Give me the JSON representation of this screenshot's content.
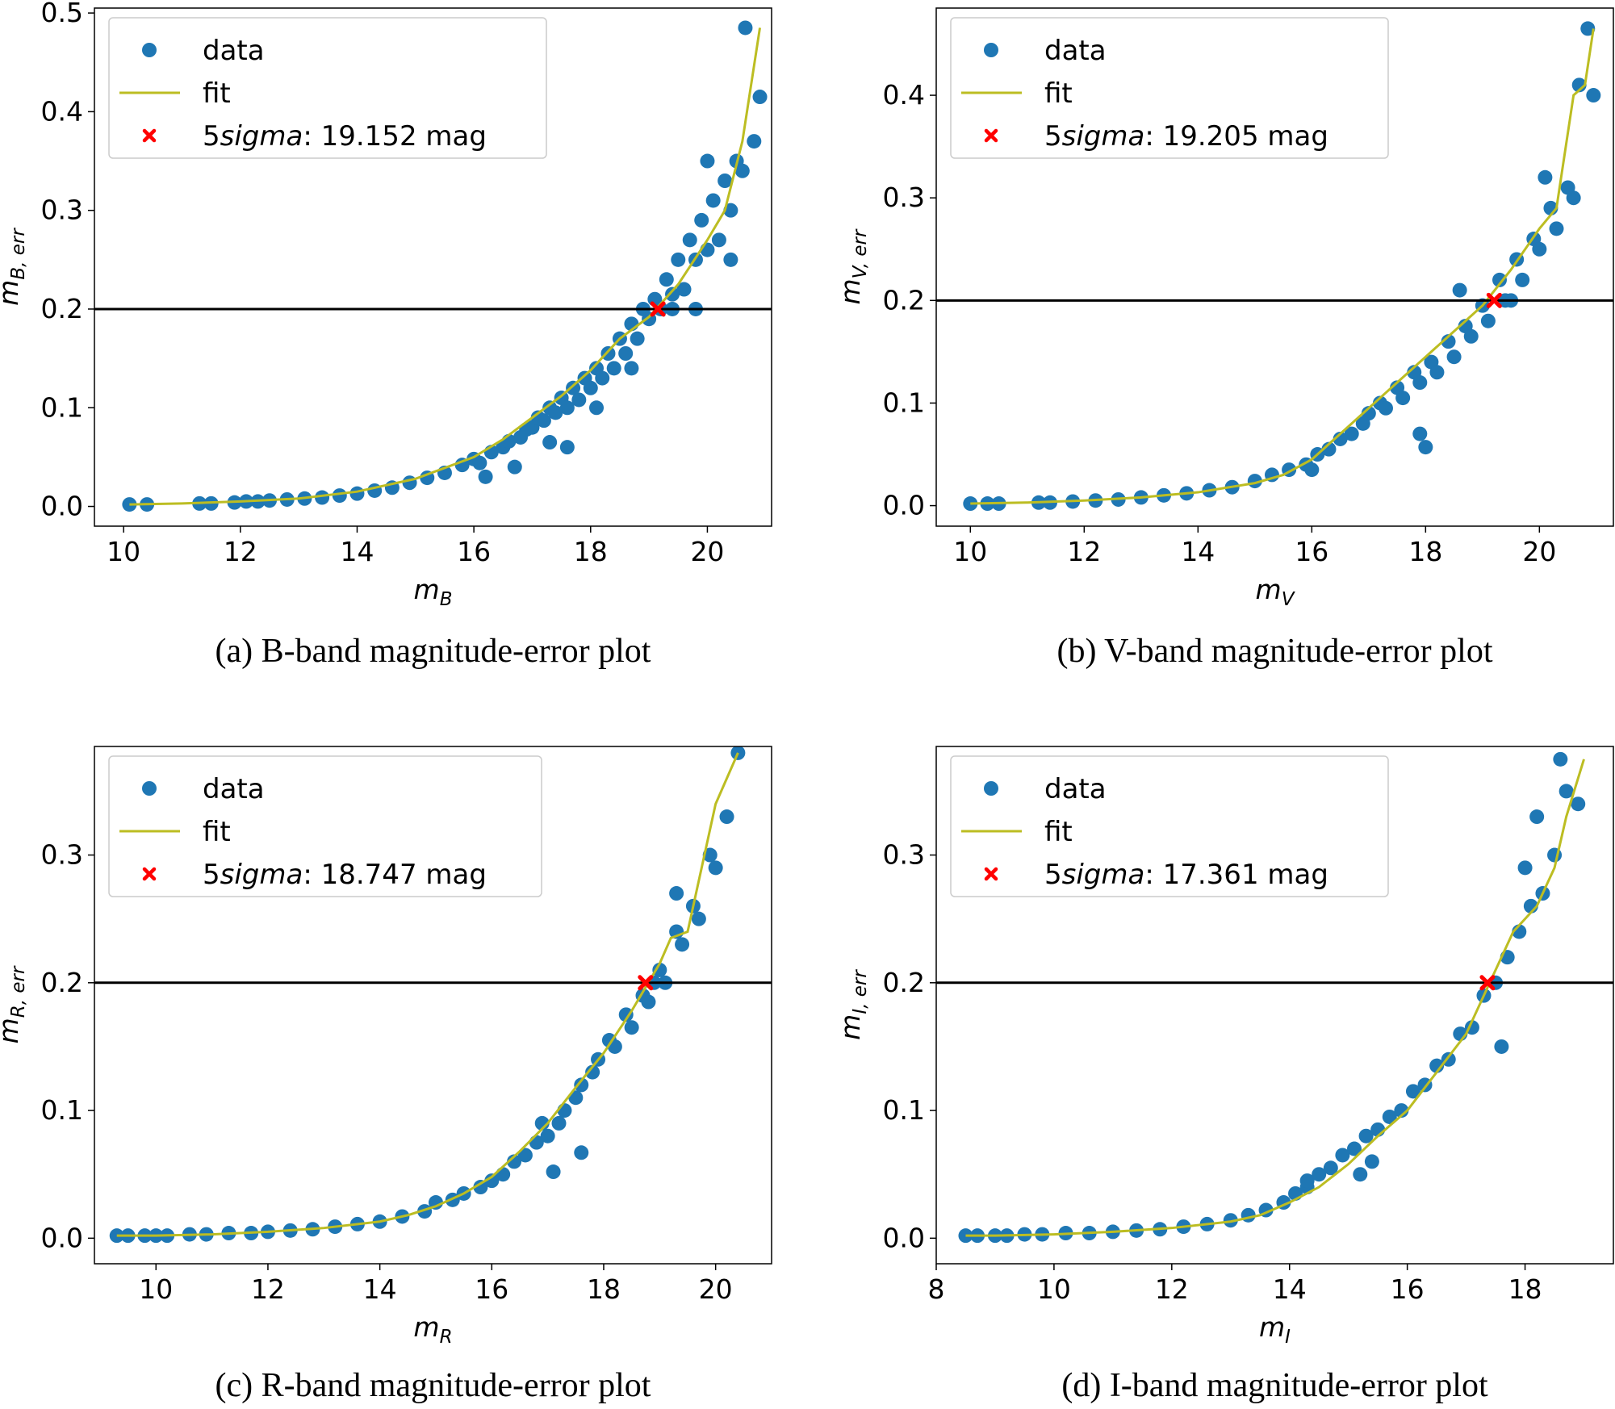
{
  "colors": {
    "data": "#1f77b4",
    "fit": "#bcbd22",
    "marker": "#ff0000",
    "hline": "#000000"
  },
  "legend": {
    "data_label": "data",
    "fit_label": "fit"
  },
  "chart_data": [
    {
      "type": "scatter",
      "band": "B",
      "caption": "(a) B-band magnitude-error plot",
      "xlabel_main": "m",
      "xlabel_sub": "B",
      "ylabel_main": "m",
      "ylabel_sub": "B, err",
      "xlim": [
        9.5,
        21.1
      ],
      "ylim": [
        -0.02,
        0.505
      ],
      "xticks": [
        10,
        12,
        14,
        16,
        18,
        20
      ],
      "yticks": [
        0.0,
        0.1,
        0.2,
        0.3,
        0.4,
        0.5
      ],
      "yticklabels": [
        "0.0",
        "0.1",
        "0.2",
        "0.3",
        "0.4",
        "0.5"
      ],
      "hline": 0.2,
      "sigma_label_prefix": "5",
      "sigma_label_italic": "sigma",
      "sigma_label_value": ":  19.152 mag",
      "sigma_x": 19.152,
      "sigma_y": 0.2,
      "fit_x": [
        10.1,
        11,
        12,
        13,
        14,
        15,
        16,
        16.5,
        17,
        17.5,
        18,
        18.5,
        19,
        19.5,
        20,
        20.3,
        20.6,
        20.9
      ],
      "fit_y": [
        0.002,
        0.003,
        0.005,
        0.008,
        0.015,
        0.028,
        0.05,
        0.068,
        0.09,
        0.112,
        0.138,
        0.17,
        0.192,
        0.225,
        0.27,
        0.3,
        0.37,
        0.485
      ],
      "data_x": [
        10.1,
        10.4,
        11.3,
        11.5,
        11.9,
        12.1,
        12.3,
        12.5,
        12.8,
        13.1,
        13.4,
        13.7,
        14,
        14.3,
        14.6,
        14.9,
        15.2,
        15.5,
        15.8,
        16,
        16.1,
        16.3,
        16.5,
        16.6,
        16.8,
        16.9,
        17,
        17.1,
        17.2,
        17.3,
        17.4,
        17.5,
        17.6,
        17.7,
        17.8,
        17.9,
        18,
        18.1,
        18.2,
        18.3,
        18.4,
        18.5,
        18.6,
        18.7,
        18.8,
        18.9,
        19,
        19.1,
        19.2,
        19.3,
        19.4,
        19.5,
        19.6,
        19.7,
        19.8,
        19.9,
        20,
        20.1,
        20.2,
        20.3,
        20.4,
        20.5,
        20.6,
        20.65,
        20.8,
        20.9,
        17.3,
        17.6,
        18.7,
        19.4,
        16.7,
        18.1,
        19.8,
        20.4,
        20.0,
        16.2
      ],
      "data_y": [
        0.002,
        0.002,
        0.003,
        0.003,
        0.004,
        0.005,
        0.005,
        0.006,
        0.007,
        0.008,
        0.009,
        0.011,
        0.013,
        0.016,
        0.019,
        0.024,
        0.029,
        0.034,
        0.042,
        0.048,
        0.044,
        0.055,
        0.06,
        0.066,
        0.07,
        0.078,
        0.08,
        0.09,
        0.087,
        0.1,
        0.095,
        0.11,
        0.1,
        0.12,
        0.108,
        0.13,
        0.12,
        0.14,
        0.13,
        0.155,
        0.14,
        0.17,
        0.155,
        0.185,
        0.17,
        0.2,
        0.19,
        0.21,
        0.2,
        0.23,
        0.215,
        0.25,
        0.22,
        0.27,
        0.25,
        0.29,
        0.26,
        0.31,
        0.27,
        0.33,
        0.3,
        0.35,
        0.34,
        0.485,
        0.37,
        0.415,
        0.065,
        0.06,
        0.14,
        0.2,
        0.04,
        0.1,
        0.2,
        0.25,
        0.35,
        0.03
      ]
    },
    {
      "type": "scatter",
      "band": "V",
      "caption": "(b) V-band magnitude-error plot",
      "xlabel_main": "m",
      "xlabel_sub": "V",
      "ylabel_main": "m",
      "ylabel_sub": "V, err",
      "xlim": [
        9.4,
        21.3
      ],
      "ylim": [
        -0.02,
        0.485
      ],
      "xticks": [
        10,
        12,
        14,
        16,
        18,
        20
      ],
      "yticks": [
        0.0,
        0.1,
        0.2,
        0.3,
        0.4
      ],
      "yticklabels": [
        "0.0",
        "0.1",
        "0.2",
        "0.3",
        "0.4"
      ],
      "hline": 0.2,
      "sigma_label_prefix": "5",
      "sigma_label_italic": "sigma",
      "sigma_label_value": ":  19.205 mag",
      "sigma_x": 19.205,
      "sigma_y": 0.2,
      "fit_x": [
        10.0,
        11,
        12,
        13,
        14,
        15,
        15.5,
        16,
        16.5,
        17,
        17.5,
        18,
        18.5,
        19,
        19.5,
        20,
        20.3,
        20.6,
        20.8,
        20.95
      ],
      "fit_y": [
        0.002,
        0.003,
        0.005,
        0.008,
        0.013,
        0.022,
        0.03,
        0.045,
        0.07,
        0.095,
        0.12,
        0.145,
        0.17,
        0.195,
        0.23,
        0.27,
        0.29,
        0.4,
        0.41,
        0.465
      ],
      "data_x": [
        10.0,
        10.3,
        10.5,
        11.2,
        11.4,
        11.8,
        12.2,
        12.6,
        13.0,
        13.4,
        13.8,
        14.2,
        14.6,
        15.0,
        15.3,
        15.6,
        15.9,
        16.1,
        16.3,
        16.5,
        16.7,
        16.9,
        17.0,
        17.2,
        17.3,
        17.5,
        17.6,
        17.8,
        17.9,
        18.1,
        18.2,
        18.4,
        18.5,
        18.7,
        18.8,
        19.0,
        19.1,
        19.3,
        19.4,
        19.6,
        19.7,
        19.9,
        20.0,
        20.2,
        20.3,
        20.5,
        20.6,
        20.7,
        20.85,
        20.95,
        18.0,
        17.9,
        18.6,
        19.5,
        20.1,
        16.0
      ],
      "data_y": [
        0.002,
        0.002,
        0.002,
        0.003,
        0.003,
        0.004,
        0.005,
        0.006,
        0.008,
        0.01,
        0.012,
        0.015,
        0.018,
        0.024,
        0.03,
        0.035,
        0.04,
        0.05,
        0.055,
        0.065,
        0.07,
        0.08,
        0.09,
        0.1,
        0.095,
        0.115,
        0.105,
        0.13,
        0.12,
        0.14,
        0.13,
        0.16,
        0.145,
        0.175,
        0.165,
        0.195,
        0.18,
        0.22,
        0.2,
        0.24,
        0.22,
        0.26,
        0.25,
        0.29,
        0.27,
        0.31,
        0.3,
        0.41,
        0.465,
        0.4,
        0.057,
        0.07,
        0.21,
        0.2,
        0.32,
        0.035
      ]
    },
    {
      "type": "scatter",
      "band": "R",
      "caption": "(c) R-band magnitude-error plot",
      "xlabel_main": "m",
      "xlabel_sub": "R",
      "ylabel_main": "m",
      "ylabel_sub": "R, err",
      "xlim": [
        8.9,
        21.0
      ],
      "ylim": [
        -0.02,
        0.385
      ],
      "xticks": [
        10,
        12,
        14,
        16,
        18,
        20
      ],
      "yticks": [
        0.0,
        0.1,
        0.2,
        0.3
      ],
      "yticklabels": [
        "0.0",
        "0.1",
        "0.2",
        "0.3"
      ],
      "hline": 0.2,
      "sigma_label_prefix": "5",
      "sigma_label_italic": "sigma",
      "sigma_label_value": ":  18.747 mag",
      "sigma_x": 18.747,
      "sigma_y": 0.2,
      "fit_x": [
        9.3,
        10,
        11,
        12,
        13,
        14,
        14.5,
        15,
        15.5,
        16,
        16.5,
        17,
        17.5,
        18,
        18.5,
        19,
        19.2,
        19.5,
        20,
        20.4
      ],
      "fit_y": [
        0.002,
        0.002,
        0.003,
        0.005,
        0.008,
        0.013,
        0.018,
        0.025,
        0.035,
        0.048,
        0.068,
        0.09,
        0.118,
        0.145,
        0.178,
        0.215,
        0.235,
        0.24,
        0.34,
        0.38
      ],
      "data_x": [
        9.3,
        9.5,
        9.8,
        10.0,
        10.2,
        10.6,
        10.9,
        11.3,
        11.7,
        12.0,
        12.4,
        12.8,
        13.2,
        13.6,
        14.0,
        14.4,
        14.8,
        15.0,
        15.3,
        15.5,
        15.8,
        16.0,
        16.2,
        16.4,
        16.6,
        16.8,
        17.0,
        17.2,
        17.3,
        17.5,
        17.6,
        17.8,
        17.9,
        18.1,
        18.2,
        18.4,
        18.5,
        18.7,
        18.8,
        19.0,
        19.1,
        19.3,
        19.4,
        19.6,
        19.7,
        19.9,
        20.0,
        20.2,
        20.4,
        17.1,
        17.6,
        18.9,
        19.3,
        16.9
      ],
      "data_y": [
        0.002,
        0.002,
        0.002,
        0.002,
        0.002,
        0.003,
        0.003,
        0.004,
        0.004,
        0.005,
        0.006,
        0.007,
        0.009,
        0.011,
        0.013,
        0.017,
        0.021,
        0.028,
        0.03,
        0.035,
        0.04,
        0.045,
        0.05,
        0.06,
        0.065,
        0.075,
        0.08,
        0.09,
        0.1,
        0.11,
        0.12,
        0.13,
        0.14,
        0.155,
        0.15,
        0.175,
        0.165,
        0.19,
        0.185,
        0.21,
        0.2,
        0.24,
        0.23,
        0.26,
        0.25,
        0.3,
        0.29,
        0.33,
        0.38,
        0.052,
        0.067,
        0.2,
        0.27,
        0.09
      ]
    },
    {
      "type": "scatter",
      "band": "I",
      "caption": "(d) I-band magnitude-error plot",
      "xlabel_main": "m",
      "xlabel_sub": "I",
      "ylabel_main": "m",
      "ylabel_sub": "I, err",
      "xlim": [
        8.0,
        19.5
      ],
      "ylim": [
        -0.02,
        0.385
      ],
      "xticks": [
        8,
        10,
        12,
        14,
        16,
        18
      ],
      "yticks": [
        0.0,
        0.1,
        0.2,
        0.3
      ],
      "yticklabels": [
        "0.0",
        "0.1",
        "0.2",
        "0.3"
      ],
      "hline": 0.2,
      "sigma_label_prefix": "5",
      "sigma_label_italic": "sigma",
      "sigma_label_value": ":  17.361 mag",
      "sigma_x": 17.361,
      "sigma_y": 0.2,
      "fit_x": [
        8.5,
        9,
        10,
        11,
        12,
        13,
        13.5,
        14,
        14.5,
        15,
        15.5,
        16,
        16.5,
        17,
        17.4,
        17.8,
        18.2,
        18.5,
        18.7,
        19.0
      ],
      "fit_y": [
        0.002,
        0.002,
        0.003,
        0.005,
        0.008,
        0.013,
        0.018,
        0.028,
        0.04,
        0.058,
        0.08,
        0.1,
        0.13,
        0.16,
        0.2,
        0.24,
        0.26,
        0.29,
        0.33,
        0.375
      ],
      "data_x": [
        8.5,
        8.7,
        9.0,
        9.2,
        9.5,
        9.8,
        10.2,
        10.6,
        11.0,
        11.4,
        11.8,
        12.2,
        12.6,
        13.0,
        13.3,
        13.6,
        13.9,
        14.1,
        14.3,
        14.5,
        14.7,
        14.9,
        15.1,
        15.3,
        15.5,
        15.7,
        15.9,
        16.1,
        16.3,
        16.5,
        16.7,
        16.9,
        17.1,
        17.3,
        17.5,
        17.7,
        17.9,
        18.1,
        18.3,
        18.5,
        18.6,
        18.7,
        18.9,
        15.2,
        15.4,
        17.6,
        18.2,
        18.0,
        14.3
      ],
      "data_y": [
        0.002,
        0.002,
        0.002,
        0.002,
        0.003,
        0.003,
        0.004,
        0.004,
        0.005,
        0.006,
        0.007,
        0.009,
        0.011,
        0.014,
        0.018,
        0.022,
        0.028,
        0.035,
        0.04,
        0.05,
        0.055,
        0.065,
        0.07,
        0.08,
        0.085,
        0.095,
        0.1,
        0.115,
        0.12,
        0.135,
        0.14,
        0.16,
        0.165,
        0.19,
        0.2,
        0.22,
        0.24,
        0.26,
        0.27,
        0.3,
        0.375,
        0.35,
        0.34,
        0.05,
        0.06,
        0.15,
        0.33,
        0.29,
        0.045
      ]
    }
  ]
}
